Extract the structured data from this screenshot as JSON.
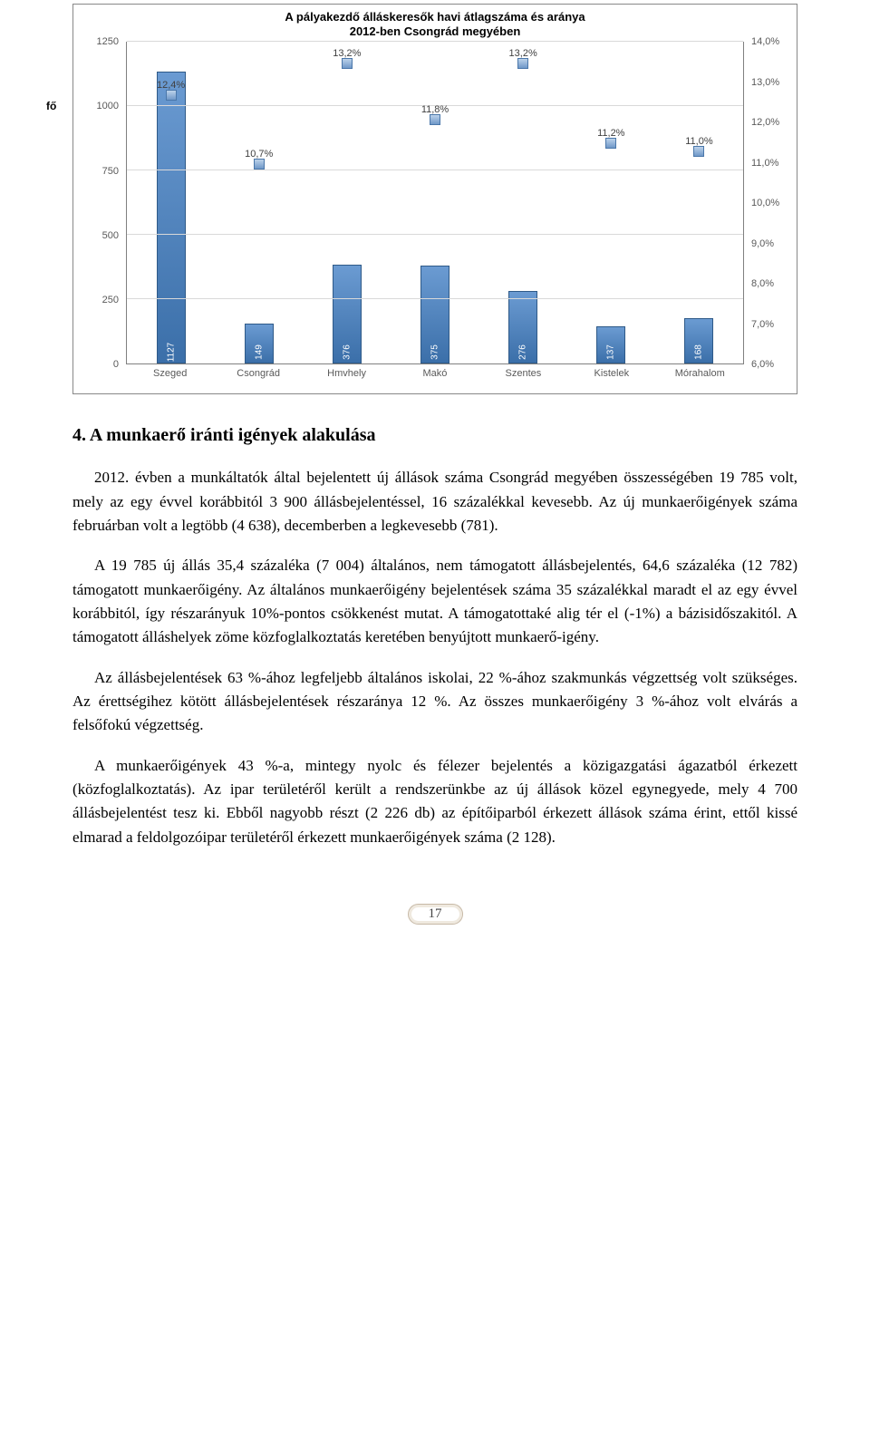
{
  "chart": {
    "type": "bar+scatter",
    "title_line1": "A pályakezdő álláskeresők havi átlagszáma és aránya",
    "title_line2": "2012-ben Csongrád megyében",
    "y_left_unit": "fő",
    "categories": [
      "Szeged",
      "Csongrád",
      "Hmvhely",
      "Makó",
      "Szentes",
      "Kistelek",
      "Mórahalom"
    ],
    "bar_values": [
      1127,
      149,
      376,
      375,
      276,
      137,
      168
    ],
    "bar_color": "#4a7bb5",
    "y_left": {
      "min": 0,
      "max": 1250,
      "ticks": [
        0,
        250,
        500,
        750,
        1000,
        1250
      ]
    },
    "percent_values": [
      12.4,
      10.7,
      13.2,
      11.8,
      13.2,
      11.2,
      11.0
    ],
    "percent_labels": [
      "12,4%",
      "10,7%",
      "13,2%",
      "11,8%",
      "13,2%",
      "11,2%",
      "11,0%"
    ],
    "y_right": {
      "min": 6.0,
      "max": 14.0,
      "ticks": [
        "6,0%",
        "7,0%",
        "8,0%",
        "9,0%",
        "10,0%",
        "11,0%",
        "12,0%",
        "13,0%",
        "14,0%"
      ]
    },
    "marker_fill": "#8fb3dc",
    "grid_color": "#d9d9d9",
    "axis_color": "#808080",
    "text_color": "#595959",
    "bg": "#ffffff"
  },
  "section": {
    "heading": "4. A munkaerő iránti igények alakulása",
    "p1": "2012. évben a munkáltatók által bejelentett új állások száma Csongrád megyében összességében 19 785 volt, mely az egy évvel korábbitól 3 900 állásbejelentéssel, 16 százalékkal kevesebb. Az új munkaerőigények száma februárban volt a legtöbb (4 638), decemberben a legkevesebb (781).",
    "p2": "A 19 785 új állás 35,4 százaléka (7 004) általános, nem támogatott állásbejelentés, 64,6 százaléka (12 782) támogatott munkaerőigény. Az általános munkaerőigény bejelentések száma 35 százalékkal maradt el az egy évvel korábbitól, így részarányuk 10%-pontos csökkenést mutat. A támogatottaké alig tér el (-1%) a bázisidőszakitól. A támogatott álláshelyek zöme közfoglalkoztatás keretében benyújtott munkaerő-igény.",
    "p3": "Az állásbejelentések 63 %-ához legfeljebb általános iskolai, 22 %-ához szakmunkás végzettség volt szükséges. Az érettségihez kötött állásbejelentések részaránya 12 %. Az összes munkaerőigény 3 %-ához volt elvárás a felsőfokú végzettség.",
    "p4": "A munkaerőigények 43 %-a, mintegy nyolc és félezer bejelentés a közigazgatási ágazatból érkezett (közfoglalkoztatás). Az ipar területéről került a rendszerünkbe az új állások közel egynegyede, mely 4 700 állásbejelentést tesz ki. Ebből nagyobb részt (2 226 db) az építőiparból érkezett állások száma érint, ettől kissé elmarad a feldolgozóipar területéről érkezett munkaerőigények száma (2 128)."
  },
  "page_number": "17"
}
